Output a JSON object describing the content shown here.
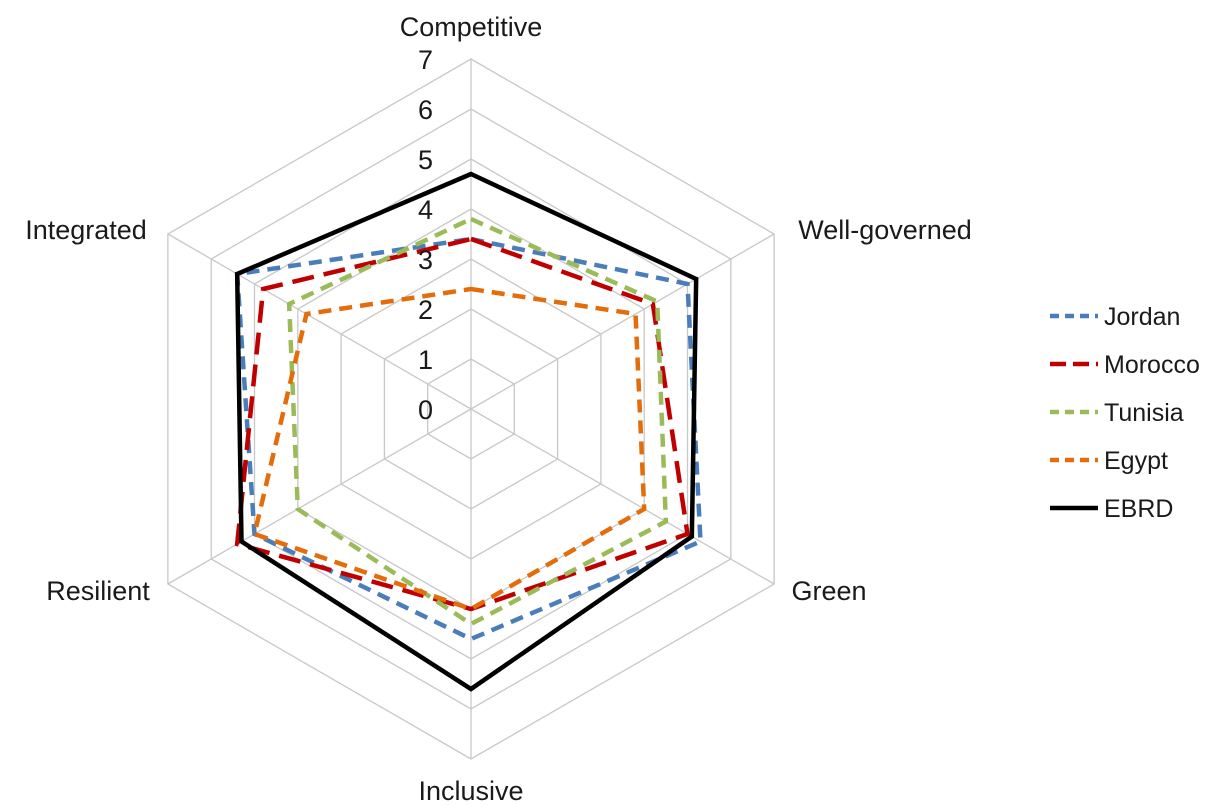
{
  "chart_data": {
    "type": "radar",
    "axes": [
      "Competitive",
      "Well-governed",
      "Green",
      "Inclusive",
      "Resilient",
      "Integrated"
    ],
    "range": [
      0,
      7
    ],
    "ticks": [
      "0",
      "1",
      "2",
      "3",
      "4",
      "5",
      "6",
      "7"
    ],
    "grid": true,
    "legend_position": "right",
    "series": [
      {
        "name": "Jordan",
        "color": "#4a7ebb",
        "style": "dash",
        "values": [
          3.4,
          5.0,
          5.3,
          4.6,
          5.0,
          5.4
        ]
      },
      {
        "name": "Morocco",
        "color": "#c00000",
        "style": "longdash",
        "values": [
          3.4,
          4.2,
          5.0,
          4.0,
          5.4,
          4.8
        ]
      },
      {
        "name": "Tunisia",
        "color": "#9bbb59",
        "style": "dash",
        "values": [
          3.8,
          4.3,
          4.5,
          4.3,
          4.0,
          4.2
        ]
      },
      {
        "name": "Egypt",
        "color": "#e46c0a",
        "style": "dash",
        "values": [
          2.4,
          3.8,
          4.0,
          4.0,
          5.0,
          3.8
        ]
      },
      {
        "name": "EBRD",
        "color": "#000000",
        "style": "solid",
        "values": [
          4.7,
          5.2,
          5.1,
          5.6,
          5.3,
          5.4
        ]
      }
    ]
  }
}
